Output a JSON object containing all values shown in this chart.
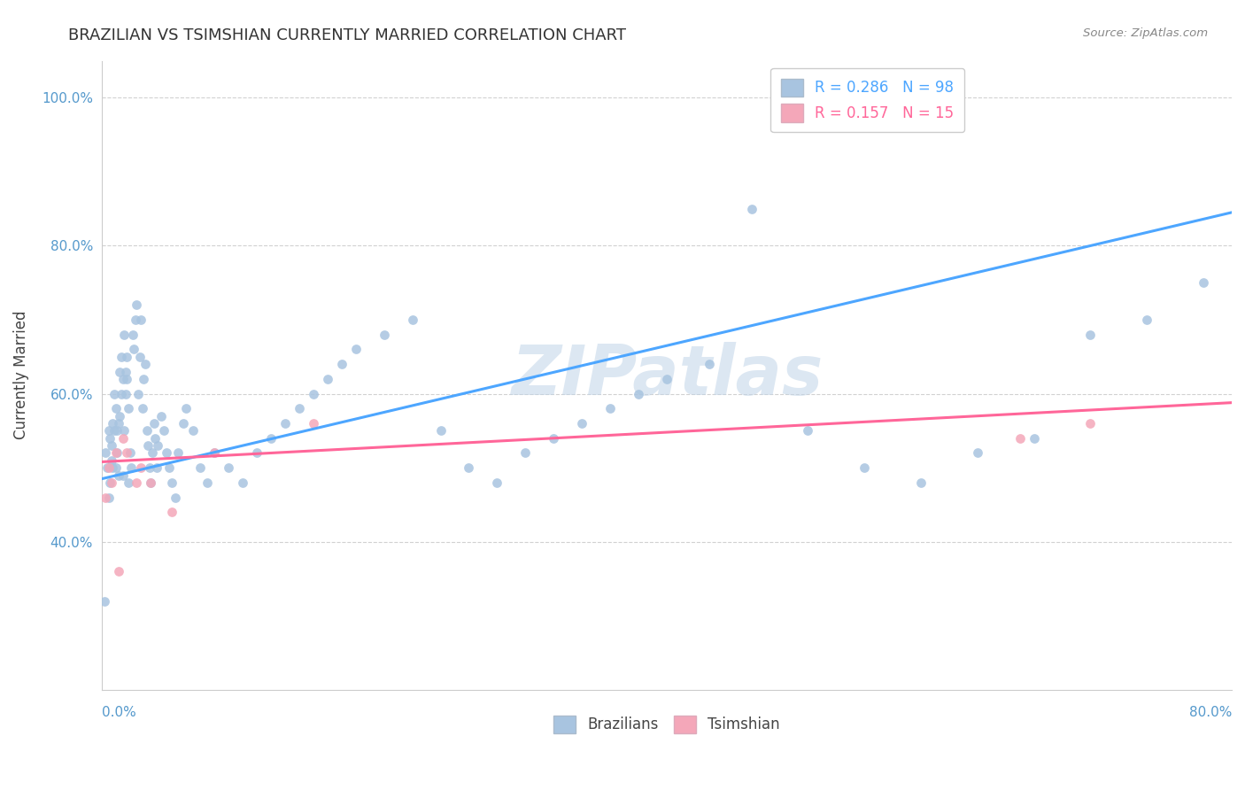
{
  "title": "BRAZILIAN VS TSIMSHIAN CURRENTLY MARRIED CORRELATION CHART",
  "source": "Source: ZipAtlas.com",
  "ylabel": "Currently Married",
  "xtick_left_label": "0.0%",
  "xtick_right_label": "80.0%",
  "xmin": 0.0,
  "xmax": 0.8,
  "ymin": 0.2,
  "ymax": 1.05,
  "yticks": [
    0.4,
    0.6,
    0.8,
    1.0
  ],
  "ytick_labels": [
    "40.0%",
    "60.0%",
    "80.0%",
    "100.0%"
  ],
  "brazilian_color": "#a8c4e0",
  "tsimshian_color": "#f4a7b9",
  "brazilian_line_color": "#4da6ff",
  "tsimshian_line_color": "#ff6699",
  "watermark": "ZIPatlas",
  "legend_R_brazilian": "R = 0.286",
  "legend_N_brazilian": "N = 98",
  "legend_R_tsimshian": "R = 0.157",
  "legend_N_tsimshian": "N = 15",
  "brazil_intercept": 0.485,
  "brazil_slope": 0.45,
  "tsimshian_intercept": 0.508,
  "tsimshian_slope": 0.1,
  "brazil_points_x": [
    0.002,
    0.003,
    0.004,
    0.005,
    0.005,
    0.006,
    0.006,
    0.007,
    0.007,
    0.008,
    0.008,
    0.009,
    0.009,
    0.01,
    0.01,
    0.011,
    0.011,
    0.012,
    0.012,
    0.013,
    0.013,
    0.014,
    0.014,
    0.015,
    0.015,
    0.016,
    0.016,
    0.017,
    0.017,
    0.018,
    0.018,
    0.019,
    0.019,
    0.02,
    0.021,
    0.022,
    0.023,
    0.024,
    0.025,
    0.026,
    0.027,
    0.028,
    0.029,
    0.03,
    0.031,
    0.032,
    0.033,
    0.034,
    0.035,
    0.036,
    0.037,
    0.038,
    0.039,
    0.04,
    0.042,
    0.044,
    0.046,
    0.048,
    0.05,
    0.052,
    0.054,
    0.058,
    0.06,
    0.065,
    0.07,
    0.075,
    0.08,
    0.09,
    0.1,
    0.11,
    0.12,
    0.13,
    0.14,
    0.15,
    0.16,
    0.17,
    0.18,
    0.2,
    0.22,
    0.24,
    0.26,
    0.28,
    0.3,
    0.32,
    0.34,
    0.36,
    0.38,
    0.4,
    0.43,
    0.46,
    0.5,
    0.54,
    0.58,
    0.62,
    0.66,
    0.7,
    0.74,
    0.78
  ],
  "brazil_points_y": [
    0.32,
    0.52,
    0.5,
    0.46,
    0.55,
    0.54,
    0.48,
    0.53,
    0.51,
    0.5,
    0.56,
    0.55,
    0.6,
    0.5,
    0.58,
    0.55,
    0.52,
    0.56,
    0.49,
    0.57,
    0.63,
    0.65,
    0.6,
    0.62,
    0.49,
    0.68,
    0.55,
    0.6,
    0.63,
    0.65,
    0.62,
    0.58,
    0.48,
    0.52,
    0.5,
    0.68,
    0.66,
    0.7,
    0.72,
    0.6,
    0.65,
    0.7,
    0.58,
    0.62,
    0.64,
    0.55,
    0.53,
    0.5,
    0.48,
    0.52,
    0.56,
    0.54,
    0.5,
    0.53,
    0.57,
    0.55,
    0.52,
    0.5,
    0.48,
    0.46,
    0.52,
    0.56,
    0.58,
    0.55,
    0.5,
    0.48,
    0.52,
    0.5,
    0.48,
    0.52,
    0.54,
    0.56,
    0.58,
    0.6,
    0.62,
    0.64,
    0.66,
    0.68,
    0.7,
    0.55,
    0.5,
    0.48,
    0.52,
    0.54,
    0.56,
    0.58,
    0.6,
    0.62,
    0.64,
    0.85,
    0.55,
    0.5,
    0.48,
    0.52,
    0.54,
    0.68,
    0.7,
    0.75
  ],
  "tsimshian_points_x": [
    0.003,
    0.005,
    0.007,
    0.01,
    0.012,
    0.015,
    0.018,
    0.025,
    0.028,
    0.035,
    0.05,
    0.08,
    0.15,
    0.65,
    0.7
  ],
  "tsimshian_points_y": [
    0.46,
    0.5,
    0.48,
    0.52,
    0.36,
    0.54,
    0.52,
    0.48,
    0.5,
    0.48,
    0.44,
    0.52,
    0.56,
    0.54,
    0.56
  ]
}
